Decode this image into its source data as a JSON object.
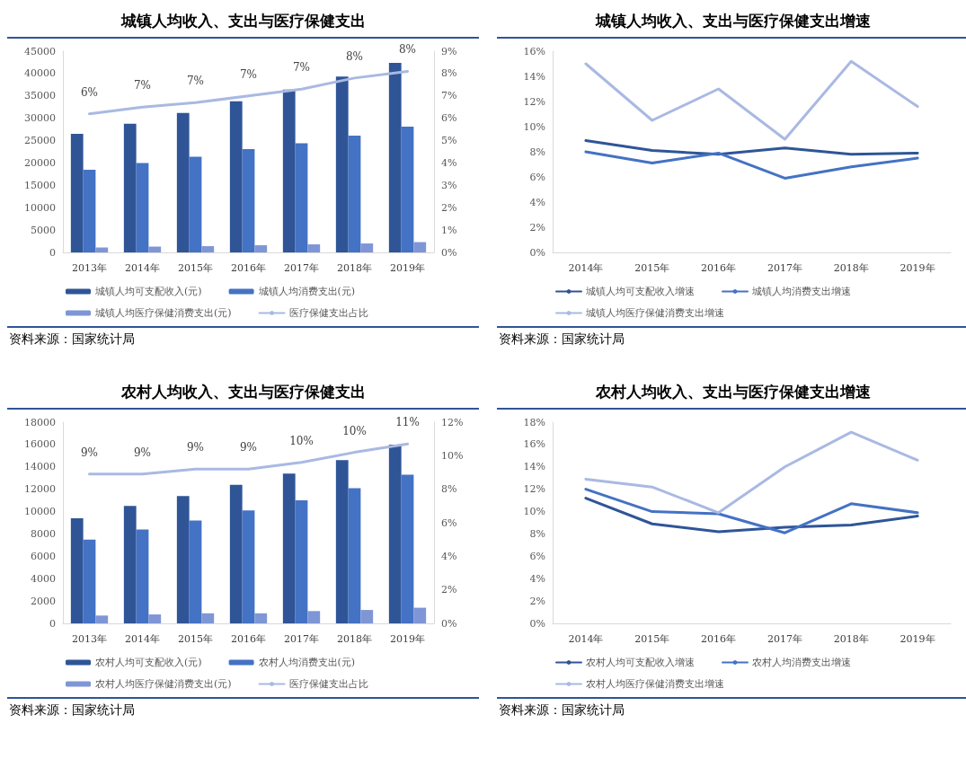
{
  "chart_data": [
    {
      "type": "bar",
      "title": "城镇人均收入、支出与医疗保健支出",
      "categories": [
        "2013年",
        "2014年",
        "2015年",
        "2016年",
        "2017年",
        "2018年",
        "2019年"
      ],
      "series": [
        {
          "name": "城镇人均可支配收入(元)",
          "color": "#2f5597",
          "values": [
            26500,
            28800,
            31200,
            33800,
            36400,
            39300,
            42400
          ]
        },
        {
          "name": "城镇人均消费支出(元)",
          "color": "#4472c4",
          "values": [
            18500,
            20000,
            21400,
            23100,
            24400,
            26100,
            28100
          ]
        },
        {
          "name": "城镇人均医疗保健消费支出(元)",
          "color": "#7f96d6",
          "values": [
            1100,
            1300,
            1400,
            1600,
            1800,
            2000,
            2300
          ]
        },
        {
          "name": "医疗保健支出占比",
          "type": "line",
          "axis": "y2",
          "color": "#a9b9e2",
          "values": [
            6.2,
            6.5,
            6.7,
            7.0,
            7.3,
            7.8,
            8.1
          ],
          "value_labels": [
            "6%",
            "7%",
            "7%",
            "7%",
            "7%",
            "8%",
            "8%"
          ]
        }
      ],
      "ylim": [
        0,
        45000
      ],
      "yticks": [
        0,
        5000,
        10000,
        15000,
        20000,
        25000,
        30000,
        35000,
        40000,
        45000
      ],
      "y2lim": [
        0,
        9
      ],
      "y2ticks": [
        {
          "value": 0,
          "label": "0%"
        },
        {
          "value": 1,
          "label": "1%"
        },
        {
          "value": 2,
          "label": "2%"
        },
        {
          "value": 3,
          "label": "3%"
        },
        {
          "value": 4,
          "label": "4%"
        },
        {
          "value": 5,
          "label": "5%"
        },
        {
          "value": 6,
          "label": "6%"
        },
        {
          "value": 7,
          "label": "7%"
        },
        {
          "value": 8,
          "label": "8%"
        },
        {
          "value": 9,
          "label": "9%"
        }
      ],
      "grid": false,
      "legend": "bottom",
      "marker": "none",
      "annotations": [
        "资料来源：国家统计局"
      ]
    },
    {
      "type": "line",
      "title": "城镇人均收入、支出与医疗保健支出增速",
      "categories": [
        "2014年",
        "2015年",
        "2016年",
        "2017年",
        "2018年",
        "2019年"
      ],
      "series": [
        {
          "name": "城镇人均可支配收入增速",
          "color": "#2f5597",
          "values": [
            8.9,
            8.1,
            7.8,
            8.3,
            7.8,
            7.9
          ]
        },
        {
          "name": "城镇人均消费支出增速",
          "color": "#4472c4",
          "values": [
            8.0,
            7.1,
            7.9,
            5.9,
            6.8,
            7.5
          ]
        },
        {
          "name": "城镇人均医疗保健消费支出增速",
          "color": "#a9b9e2",
          "values": [
            15.0,
            10.5,
            13.0,
            9.0,
            15.2,
            11.6
          ]
        }
      ],
      "ylim": [
        0,
        16
      ],
      "yticks": [
        {
          "value": 0,
          "label": "0%"
        },
        {
          "value": 2,
          "label": "2%"
        },
        {
          "value": 4,
          "label": "4%"
        },
        {
          "value": 6,
          "label": "6%"
        },
        {
          "value": 8,
          "label": "8%"
        },
        {
          "value": 10,
          "label": "10%"
        },
        {
          "value": 12,
          "label": "12%"
        },
        {
          "value": 14,
          "label": "14%"
        },
        {
          "value": 16,
          "label": "16%"
        }
      ],
      "grid": false,
      "legend": "bottom",
      "marker": "none",
      "annotations": [
        "资料来源：国家统计局"
      ]
    },
    {
      "type": "bar",
      "title": "农村人均收入、支出与医疗保健支出",
      "categories": [
        "2013年",
        "2014年",
        "2015年",
        "2016年",
        "2017年",
        "2018年",
        "2019年"
      ],
      "series": [
        {
          "name": "农村人均可支配收入(元)",
          "color": "#2f5597",
          "values": [
            9400,
            10500,
            11400,
            12400,
            13400,
            14600,
            16000
          ]
        },
        {
          "name": "农村人均消费支出(元)",
          "color": "#4472c4",
          "values": [
            7500,
            8400,
            9200,
            10100,
            11000,
            12100,
            13300
          ]
        },
        {
          "name": "农村人均医疗保健消费支出(元)",
          "color": "#7f96d6",
          "values": [
            700,
            800,
            900,
            900,
            1100,
            1200,
            1400
          ]
        },
        {
          "name": "医疗保健支出占比",
          "type": "line",
          "axis": "y2",
          "color": "#a9b9e2",
          "values": [
            8.9,
            8.9,
            9.2,
            9.2,
            9.6,
            10.2,
            10.7
          ],
          "value_labels": [
            "9%",
            "9%",
            "9%",
            "9%",
            "10%",
            "10%",
            "11%"
          ]
        }
      ],
      "ylim": [
        0,
        18000
      ],
      "yticks": [
        0,
        2000,
        4000,
        6000,
        8000,
        10000,
        12000,
        14000,
        16000,
        18000
      ],
      "y2lim": [
        0,
        12
      ],
      "y2ticks": [
        {
          "value": 0,
          "label": "0%"
        },
        {
          "value": 2,
          "label": "2%"
        },
        {
          "value": 4,
          "label": "4%"
        },
        {
          "value": 6,
          "label": "6%"
        },
        {
          "value": 8,
          "label": "8%"
        },
        {
          "value": 10,
          "label": "10%"
        },
        {
          "value": 12,
          "label": "12%"
        }
      ],
      "grid": false,
      "legend": "bottom",
      "marker": "none",
      "annotations": [
        "资料来源：国家统计局"
      ]
    },
    {
      "type": "line",
      "title": "农村人均收入、支出与医疗保健支出增速",
      "categories": [
        "2014年",
        "2015年",
        "2016年",
        "2017年",
        "2018年",
        "2019年"
      ],
      "series": [
        {
          "name": "农村人均可支配收入增速",
          "color": "#2f5597",
          "values": [
            11.2,
            8.9,
            8.2,
            8.6,
            8.8,
            9.6
          ]
        },
        {
          "name": "农村人均消费支出增速",
          "color": "#4472c4",
          "values": [
            12.0,
            10.0,
            9.8,
            8.1,
            10.7,
            9.9
          ]
        },
        {
          "name": "农村人均医疗保健消费支出增速",
          "color": "#a9b9e2",
          "values": [
            12.9,
            12.2,
            9.9,
            14.0,
            17.1,
            14.6
          ]
        }
      ],
      "ylim": [
        0,
        18
      ],
      "yticks": [
        {
          "value": 0,
          "label": "0%"
        },
        {
          "value": 2,
          "label": "2%"
        },
        {
          "value": 4,
          "label": "4%"
        },
        {
          "value": 6,
          "label": "6%"
        },
        {
          "value": 8,
          "label": "8%"
        },
        {
          "value": 10,
          "label": "10%"
        },
        {
          "value": 12,
          "label": "12%"
        },
        {
          "value": 14,
          "label": "14%"
        },
        {
          "value": 16,
          "label": "16%"
        },
        {
          "value": 18,
          "label": "18%"
        }
      ],
      "grid": false,
      "legend": "bottom",
      "marker": "none",
      "annotations": [
        "资料来源：国家统计局"
      ]
    }
  ]
}
